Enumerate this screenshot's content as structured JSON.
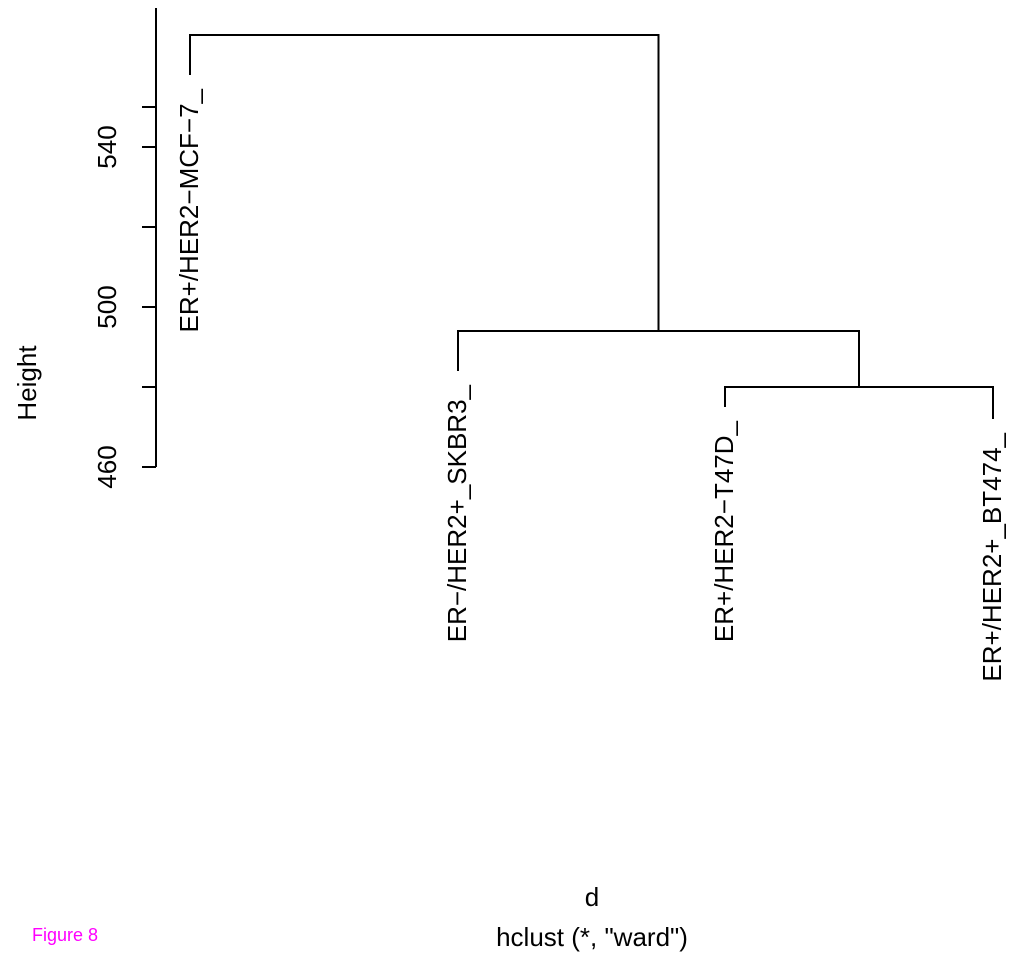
{
  "figure_label": "Figure 8",
  "colors": {
    "figure_label": "#ff00ff",
    "lines": "#000000"
  },
  "chart_data": {
    "type": "dendrogram",
    "title": "",
    "xlabel": "d",
    "subtitle": "hclust (*, \"ward\")",
    "ylabel": "Height",
    "ylim": [
      460,
      550
    ],
    "y_ticks": [
      460,
      500,
      540
    ],
    "y_minor_ticks": [
      480,
      520
    ],
    "leaves": [
      {
        "label": "ER+/HER2−MCF−7_",
        "top": 558
      },
      {
        "label": "ER−/HER2+_SKBR3_",
        "top": 484
      },
      {
        "label": "ER+/HER2−T47D_",
        "top": 475
      },
      {
        "label": "ER+/HER2+_BT474_",
        "top": 472
      }
    ],
    "merges": [
      {
        "left": "leaf:2",
        "right": "leaf:3",
        "height": 480
      },
      {
        "left": "leaf:1",
        "right": "merge:0",
        "height": 494
      },
      {
        "left": "leaf:0",
        "right": "merge:1",
        "height": 568
      }
    ]
  }
}
